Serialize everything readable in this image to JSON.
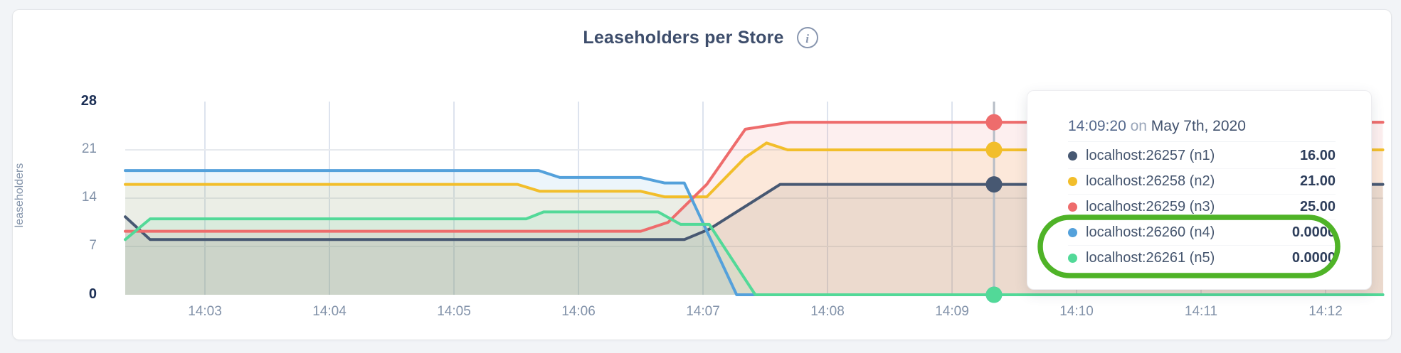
{
  "header": {
    "title": "Leaseholders per Store",
    "info_glyph": "i"
  },
  "chart_data": {
    "type": "area",
    "title": "Leaseholders per Store",
    "xlabel": "",
    "ylabel": "leaseholders",
    "ylim": [
      0,
      28
    ],
    "y_ticks": [
      28,
      21,
      14,
      7,
      0
    ],
    "y_emphasized": [
      28,
      0
    ],
    "grid_y": [
      7,
      14,
      21
    ],
    "grid": true,
    "legend_position": "hover-tooltip",
    "x_domain_minutes": [
      2.36,
      12.46
    ],
    "x_ticks": [
      {
        "minute": 3,
        "label": "14:03"
      },
      {
        "minute": 4,
        "label": "14:04"
      },
      {
        "minute": 5,
        "label": "14:05"
      },
      {
        "minute": 6,
        "label": "14:06"
      },
      {
        "minute": 7,
        "label": "14:07"
      },
      {
        "minute": 8,
        "label": "14:08"
      },
      {
        "minute": 9,
        "label": "14:09"
      },
      {
        "minute": 10,
        "label": "14:10"
      },
      {
        "minute": 11,
        "label": "14:11"
      },
      {
        "minute": 12,
        "label": "14:12"
      }
    ],
    "series": [
      {
        "name": "localhost:26257 (n1)",
        "color": "#475872",
        "points": [
          [
            2.36,
            11.3
          ],
          [
            2.56,
            8
          ],
          [
            6.85,
            8
          ],
          [
            7.05,
            9.5
          ],
          [
            7.62,
            16
          ],
          [
            12.46,
            16
          ]
        ]
      },
      {
        "name": "localhost:26258 (n2)",
        "color": "#F2BE2B",
        "points": [
          [
            2.36,
            16
          ],
          [
            5.51,
            16
          ],
          [
            5.69,
            15
          ],
          [
            6.5,
            15
          ],
          [
            6.69,
            14.2
          ],
          [
            7.03,
            14.2
          ],
          [
            7.34,
            19.9
          ],
          [
            7.51,
            22
          ],
          [
            7.68,
            21
          ],
          [
            12.46,
            21
          ]
        ]
      },
      {
        "name": "localhost:26259 (n3)",
        "color": "#EE6C6C",
        "points": [
          [
            2.36,
            9.2
          ],
          [
            6.5,
            9.2
          ],
          [
            6.72,
            10.5
          ],
          [
            7.03,
            16
          ],
          [
            7.34,
            24
          ],
          [
            7.7,
            25
          ],
          [
            12.46,
            25
          ]
        ]
      },
      {
        "name": "localhost:26260 (n4)",
        "color": "#54A1DB",
        "points": [
          [
            2.36,
            18
          ],
          [
            5.68,
            18
          ],
          [
            5.85,
            17
          ],
          [
            6.5,
            17
          ],
          [
            6.69,
            16.2
          ],
          [
            6.85,
            16.2
          ],
          [
            7.27,
            0
          ],
          [
            12.46,
            0
          ]
        ]
      },
      {
        "name": "localhost:26261 (n5)",
        "color": "#52D998",
        "points": [
          [
            2.36,
            8
          ],
          [
            2.56,
            11
          ],
          [
            5.58,
            11
          ],
          [
            5.72,
            12
          ],
          [
            6.64,
            12
          ],
          [
            6.82,
            10.2
          ],
          [
            7.05,
            10.2
          ],
          [
            7.42,
            0
          ],
          [
            12.46,
            0
          ]
        ]
      }
    ],
    "fill_opacity": 0.11,
    "hover": {
      "minute": 9.337,
      "time": "14:09:20",
      "values": [
        16,
        21,
        25,
        0,
        0
      ]
    }
  },
  "tooltip": {
    "time": "14:09:20",
    "on": "on",
    "date": "May 7th, 2020",
    "rows": [
      {
        "label": "localhost:26257 (n1)",
        "value": "16.00"
      },
      {
        "label": "localhost:26258 (n2)",
        "value": "21.00"
      },
      {
        "label": "localhost:26259 (n3)",
        "value": "25.00"
      },
      {
        "label": "localhost:26260 (n4)",
        "value": "0.0000",
        "highlighted": true
      },
      {
        "label": "localhost:26261 (n5)",
        "value": "0.0000",
        "highlighted": true
      }
    ]
  },
  "annotation": {
    "shape": "ellipse-outline",
    "color": "#4FB327",
    "around_rows": [
      "localhost:26260 (n4)",
      "localhost:26261 (n5)"
    ]
  }
}
